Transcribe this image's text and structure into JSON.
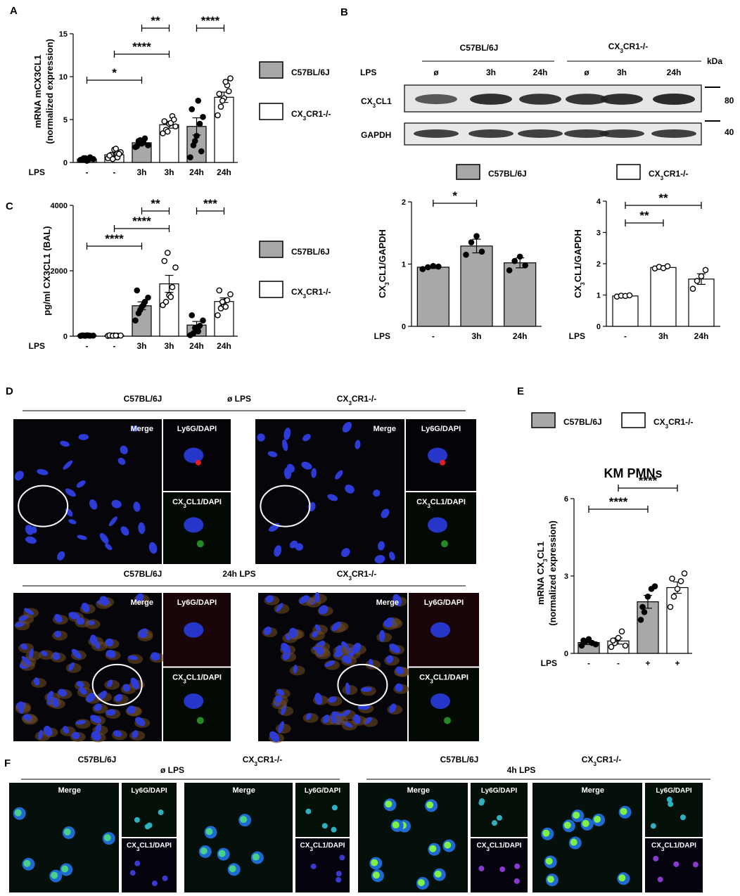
{
  "panels": {
    "A": "A",
    "B": "B",
    "C": "C",
    "D": "D",
    "E": "E",
    "F": "F"
  },
  "legend": {
    "wt": "C57BL/6J",
    "ko_pre": "CX",
    "ko_sub": "3",
    "ko_post": "CR1-/-",
    "wt_color": "#a8a8a8",
    "ko_color": "#ffffff"
  },
  "common": {
    "lps": "LPS",
    "kda": "kDa",
    "none_symbol": "ø"
  },
  "chart_data": [
    {
      "id": "A",
      "type": "bar",
      "ylabel_line1": "mRNA mCX3CL1",
      "ylabel_line2": "(normalized expression)",
      "ylim": [
        0,
        15
      ],
      "yticks": [
        "0",
        "5",
        "10",
        "15"
      ],
      "categories": [
        "-",
        "-",
        "3h",
        "3h",
        "24h",
        "24h"
      ],
      "groups": [
        "wt",
        "ko",
        "wt",
        "ko",
        "wt",
        "ko"
      ],
      "values": [
        0.4,
        0.9,
        2.3,
        4.4,
        4.2,
        7.6
      ],
      "sem": [
        0.1,
        0.2,
        0.25,
        0.4,
        1.0,
        0.6
      ],
      "points": [
        [
          0.3,
          0.5,
          0.2,
          0.6,
          0.4,
          0.3,
          0.5,
          0.35
        ],
        [
          0.5,
          0.9,
          1.5,
          0.6,
          1.2,
          0.8,
          0.4,
          1.6,
          1.0
        ],
        [
          1.8,
          2.5,
          2.2,
          2.8,
          2.0,
          1.9,
          2.6,
          2.4
        ],
        [
          3.4,
          3.8,
          4.5,
          5.4,
          4.2,
          4.8,
          3.6,
          4.6,
          5.0
        ],
        [
          0.6,
          2.0,
          3.1,
          4.5,
          5.3,
          6.2,
          2.5,
          7.2,
          1.3
        ],
        [
          5.5,
          6.5,
          7.5,
          9.0,
          9.8,
          8.0,
          7.2,
          9.4,
          8.3
        ]
      ],
      "significance": [
        {
          "from": 0,
          "to": 2,
          "label": "*",
          "level": 0
        },
        {
          "from": 1,
          "to": 3,
          "label": "****",
          "level": 1
        },
        {
          "from": 2,
          "to": 3,
          "label": "**",
          "level": 2
        },
        {
          "from": 4,
          "to": 5,
          "label": "****",
          "level": 2
        }
      ]
    },
    {
      "id": "C",
      "type": "bar",
      "ylabel_line1": "pg/ml CX3CL1 (BAL)",
      "ylabel_line2": "",
      "ylim": [
        0,
        4000
      ],
      "yticks": [
        "0",
        "2000",
        "4000"
      ],
      "categories": [
        "-",
        "-",
        "3h",
        "3h",
        "24h",
        "24h"
      ],
      "groups": [
        "wt",
        "ko",
        "wt",
        "ko",
        "wt",
        "ko"
      ],
      "values": [
        20,
        20,
        930,
        1600,
        340,
        1060
      ],
      "sem": [
        5,
        5,
        120,
        260,
        110,
        110
      ],
      "points": [
        [
          10,
          20,
          25,
          15,
          18,
          22,
          12,
          20
        ],
        [
          10,
          18,
          22,
          15,
          20,
          25,
          12,
          18
        ],
        [
          480,
          700,
          900,
          1050,
          1180,
          1400,
          800,
          950
        ],
        [
          950,
          1050,
          1250,
          1500,
          2100,
          2300,
          2550,
          1200
        ],
        [
          30,
          90,
          200,
          320,
          480,
          640,
          250,
          150
        ],
        [
          640,
          850,
          950,
          1100,
          1280,
          1400,
          1050,
          900
        ]
      ],
      "significance": [
        {
          "from": 0,
          "to": 2,
          "label": "****",
          "level": 0
        },
        {
          "from": 1,
          "to": 3,
          "label": "****",
          "level": 1
        },
        {
          "from": 2,
          "to": 3,
          "label": "**",
          "level": 2
        },
        {
          "from": 4,
          "to": 5,
          "label": "***",
          "level": 2
        }
      ]
    },
    {
      "id": "B1",
      "type": "bar",
      "ylabel_line1": "CX3CL1/GAPDH",
      "ylabel_line2": "",
      "ylim": [
        0,
        2
      ],
      "yticks": [
        "0",
        "1",
        "2"
      ],
      "categories": [
        "-",
        "3h",
        "24h"
      ],
      "groups": [
        "wt",
        "wt",
        "wt"
      ],
      "values": [
        0.95,
        1.29,
        1.02
      ],
      "sem": [
        0.02,
        0.11,
        0.08
      ],
      "points": [
        [
          0.92,
          0.95,
          0.97,
          0.96
        ],
        [
          1.15,
          1.35,
          1.45,
          1.2
        ],
        [
          0.9,
          1.05,
          1.12,
          0.98
        ]
      ],
      "significance": [
        {
          "from": 0,
          "to": 1,
          "label": "*",
          "level": 0
        }
      ]
    },
    {
      "id": "B2",
      "type": "bar",
      "ylabel_line1": "CX3CL1/GAPDH",
      "ylabel_line2": "",
      "ylim": [
        0,
        4
      ],
      "yticks": [
        "0",
        "1",
        "2",
        "3",
        "4"
      ],
      "categories": [
        "-",
        "3h",
        "24h"
      ],
      "groups": [
        "ko",
        "ko",
        "ko"
      ],
      "values": [
        0.97,
        1.88,
        1.51
      ],
      "sem": [
        0.02,
        0.04,
        0.17
      ],
      "points": [
        [
          0.95,
          0.98,
          0.97,
          0.99
        ],
        [
          1.85,
          1.9,
          1.86,
          1.92
        ],
        [
          1.2,
          1.45,
          1.6,
          1.8
        ]
      ],
      "significance": [
        {
          "from": 0,
          "to": 1,
          "label": "**",
          "level": 0
        },
        {
          "from": 0,
          "to": 2,
          "label": "**",
          "level": 1
        }
      ]
    },
    {
      "id": "E",
      "type": "bar",
      "title": "KM PMNs",
      "ylabel_line1": "mRNA CX3CL1",
      "ylabel_line2": "(normalized expression)",
      "ylim": [
        0,
        6
      ],
      "yticks": [
        "0",
        "3",
        "6"
      ],
      "categories": [
        "-",
        "-",
        "+",
        "+"
      ],
      "groups": [
        "wt",
        "ko",
        "wt",
        "ko"
      ],
      "values": [
        0.42,
        0.48,
        2.0,
        2.55
      ],
      "sem": [
        0.08,
        0.12,
        0.25,
        0.22
      ],
      "points": [
        [
          0.3,
          0.45,
          0.55,
          0.4,
          0.35,
          0.5
        ],
        [
          0.25,
          0.4,
          0.6,
          0.85,
          0.3,
          0.5
        ],
        [
          1.3,
          1.6,
          2.2,
          2.5,
          2.6,
          1.8
        ],
        [
          1.8,
          2.2,
          2.5,
          2.8,
          3.1,
          2.9
        ]
      ],
      "significance": [
        {
          "from": 0,
          "to": 2,
          "label": "****",
          "level": 0
        },
        {
          "from": 1,
          "to": 3,
          "label": "****",
          "level": 1
        }
      ]
    }
  ],
  "blot": {
    "group1": "C57BL/6J",
    "lanes": [
      "ø",
      "3h",
      "24h",
      "ø",
      "3h",
      "24h"
    ],
    "row1": "CX3CL1",
    "row2": "GAPDH",
    "marker1": "80",
    "marker2": "40"
  },
  "panel_d": {
    "top_mid": "ø LPS",
    "bottom_mid": "24h LPS",
    "merge": "Merge",
    "ly6g": "Ly6G/DAPI",
    "cx3cl1": "CX3CL1/DAPI"
  },
  "panel_f": {
    "left_mid": "ø LPS",
    "right_mid": "4h LPS"
  }
}
